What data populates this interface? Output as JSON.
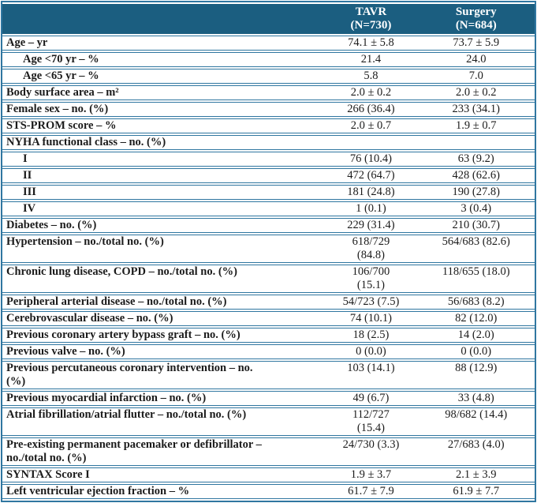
{
  "colors": {
    "header_bg": "#1b5e80",
    "header_text": "#ffffff",
    "border": "#2f76a0",
    "text": "#1b1b1b"
  },
  "table": {
    "columns": [
      {
        "label": "TAVR\n(N=730)"
      },
      {
        "label": "Surgery\n(N=684)"
      }
    ],
    "rows": [
      {
        "label": "Age – yr",
        "indent": false,
        "tavr": "74.1 ± 5.8",
        "surgery": "73.7 ± 5.9"
      },
      {
        "label": "Age <70 yr – %",
        "indent": true,
        "tavr": "21.4",
        "surgery": "24.0"
      },
      {
        "label": "Age <65 yr – %",
        "indent": true,
        "tavr": "5.8",
        "surgery": "7.0"
      },
      {
        "label": "Body surface area – m²",
        "indent": false,
        "tavr": "2.0 ± 0.2",
        "surgery": "2.0 ± 0.2"
      },
      {
        "label": "Female sex – no. (%)",
        "indent": false,
        "tavr": "266 (36.4)",
        "surgery": "233 (34.1)"
      },
      {
        "label": "STS-PROM score – %",
        "indent": false,
        "tavr": "2.0 ± 0.7",
        "surgery": "1.9 ± 0.7"
      },
      {
        "label": "NYHA functional class – no. (%)",
        "indent": false,
        "tavr": "",
        "surgery": ""
      },
      {
        "label": "I",
        "indent": true,
        "tavr": "76 (10.4)",
        "surgery": "63 (9.2)"
      },
      {
        "label": "II",
        "indent": true,
        "tavr": "472 (64.7)",
        "surgery": "428 (62.6)"
      },
      {
        "label": "III",
        "indent": true,
        "tavr": "181 (24.8)",
        "surgery": "190 (27.8)"
      },
      {
        "label": "IV",
        "indent": true,
        "tavr": "1 (0.1)",
        "surgery": "3 (0.4)"
      },
      {
        "label": "Diabetes – no. (%)",
        "indent": false,
        "tavr": "229 (31.4)",
        "surgery": "210 (30.7)"
      },
      {
        "label": "Hypertension – no./total no. (%)",
        "indent": false,
        "tavr": "618/729\n(84.8)",
        "surgery": "564/683 (82.6)"
      },
      {
        "label": "Chronic lung disease, COPD – no./total no. (%)",
        "indent": false,
        "tavr": "106/700\n(15.1)",
        "surgery": "118/655 (18.0)"
      },
      {
        "label": "Peripheral arterial disease – no./total no. (%)",
        "indent": false,
        "tavr": "54/723 (7.5)",
        "surgery": "56/683 (8.2)"
      },
      {
        "label": "Cerebrovascular disease – no. (%)",
        "indent": false,
        "tavr": "74 (10.1)",
        "surgery": "82 (12.0)"
      },
      {
        "label": "Previous coronary artery bypass graft – no. (%)",
        "indent": false,
        "tavr": "18 (2.5)",
        "surgery": "14 (2.0)"
      },
      {
        "label": "Previous valve – no. (%)",
        "indent": false,
        "tavr": "0 (0.0)",
        "surgery": "0 (0.0)"
      },
      {
        "label": "Previous percutaneous coronary intervention – no.\n(%)",
        "indent": false,
        "tavr": "103 (14.1)",
        "surgery": "88 (12.9)"
      },
      {
        "label": "Previous myocardial infarction – no. (%)",
        "indent": false,
        "tavr": "49 (6.7)",
        "surgery": "33 (4.8)"
      },
      {
        "label": "Atrial fibrillation/atrial flutter – no./total no. (%)",
        "indent": false,
        "tavr": "112/727\n(15.4)",
        "surgery": "98/682 (14.4)"
      },
      {
        "label": "Pre-existing permanent pacemaker or defibrillator –\nno./total no. (%)",
        "indent": false,
        "tavr": "24/730 (3.3)",
        "surgery": "27/683 (4.0)"
      },
      {
        "label": "SYNTAX Score I",
        "indent": false,
        "tavr": "1.9 ± 3.7",
        "surgery": "2.1 ± 3.9"
      },
      {
        "label": "Left ventricular ejection fraction – %",
        "indent": false,
        "tavr": "61.7 ± 7.9",
        "surgery": "61.9 ± 7.7"
      }
    ]
  }
}
